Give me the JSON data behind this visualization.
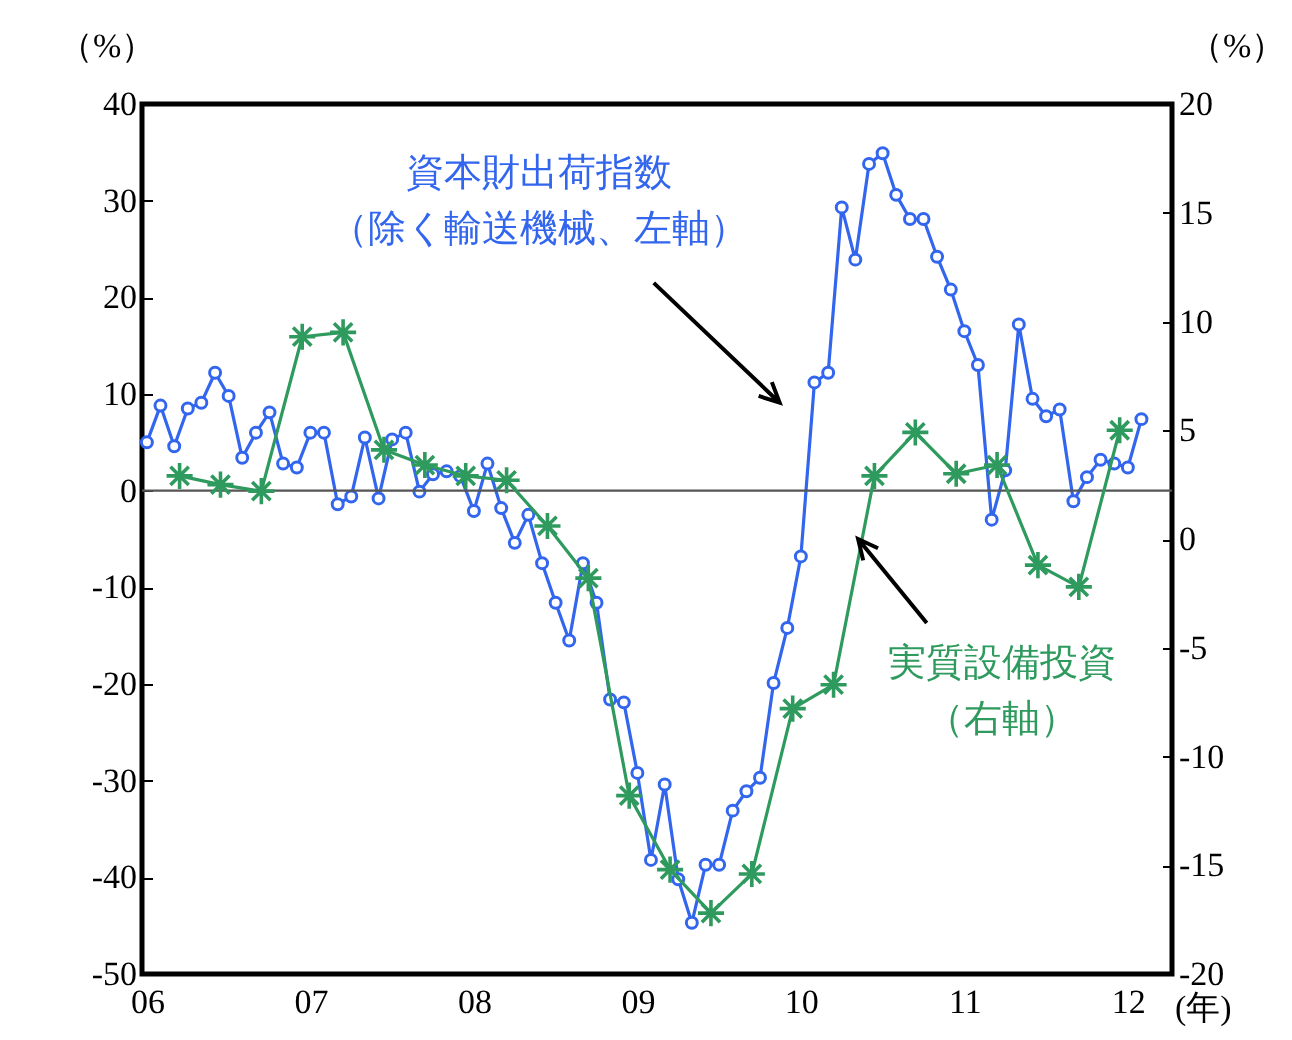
{
  "chart_data": {
    "type": "line",
    "xlabel": "(年)",
    "ylabel": "（%）",
    "y2label": "（%）",
    "xlim": [
      2005.97,
      2012.27
    ],
    "xticks": [
      {
        "value": 2006,
        "label": "06"
      },
      {
        "value": 2007,
        "label": "07"
      },
      {
        "value": 2008,
        "label": "08"
      },
      {
        "value": 2009,
        "label": "09"
      },
      {
        "value": 2010,
        "label": "10"
      },
      {
        "value": 2011,
        "label": "11"
      },
      {
        "value": 2012,
        "label": "12"
      }
    ],
    "ylim": [
      -50,
      40
    ],
    "yticks": [
      -50,
      -40,
      -30,
      -20,
      -10,
      0,
      10,
      20,
      30,
      40
    ],
    "y2lim": [
      -20,
      20
    ],
    "y2ticks": [
      -20,
      -15,
      -10,
      -5,
      0,
      5,
      10,
      15,
      20
    ],
    "ref_lines": [
      {
        "axis": "y",
        "value": 0,
        "color": "#555555"
      }
    ],
    "series": [
      {
        "name": "資本財出荷指数（除く輸送機械、左軸）",
        "color": "#3366ee",
        "marker": "circle",
        "x": [
          2006,
          2006.083,
          2006.167,
          2006.25,
          2006.333,
          2006.417,
          2006.5,
          2006.583,
          2006.667,
          2006.75,
          2006.833,
          2006.917,
          2007,
          2007.083,
          2007.167,
          2007.25,
          2007.333,
          2007.417,
          2007.5,
          2007.583,
          2007.667,
          2007.75,
          2007.833,
          2007.917,
          2008,
          2008.083,
          2008.167,
          2008.25,
          2008.333,
          2008.417,
          2008.5,
          2008.583,
          2008.667,
          2008.75,
          2008.833,
          2008.917,
          2009,
          2009.083,
          2009.167,
          2009.25,
          2009.333,
          2009.417,
          2009.5,
          2009.583,
          2009.667,
          2009.75,
          2009.833,
          2009.917,
          2010,
          2010.083,
          2010.167,
          2010.25,
          2010.333,
          2010.417,
          2010.5,
          2010.583,
          2010.667,
          2010.75,
          2010.833,
          2010.917,
          2011,
          2011.083,
          2011.167,
          2011.25,
          2011.333,
          2011.417,
          2011.5,
          2011.583,
          2011.667,
          2011.75,
          2011.833,
          2011.917,
          2012,
          2012.083
        ],
        "values": [
          5.0,
          8.8,
          4.6,
          8.5,
          9.1,
          12.2,
          9.8,
          3.4,
          6.0,
          8.1,
          2.8,
          2.4,
          6.0,
          6.0,
          -1.4,
          -0.6,
          5.5,
          -0.8,
          5.3,
          6.0,
          -0.1,
          1.7,
          2.0,
          1.5,
          -2.1,
          2.8,
          -1.8,
          -5.4,
          -2.5,
          -7.5,
          -11.6,
          -15.5,
          -7.5,
          -11.6,
          -21.6,
          -21.9,
          -29.2,
          -38.2,
          -30.4,
          -40.2,
          -44.7,
          -38.7,
          -38.7,
          -33.1,
          -31.1,
          -29.7,
          -19.9,
          -14.2,
          -6.8,
          11.2,
          12.2,
          29.3,
          23.9,
          33.8,
          34.9,
          30.6,
          28.1,
          28.1,
          24.2,
          20.8,
          16.5,
          13.0,
          -3.0,
          2.1,
          17.2,
          9.5,
          7.7,
          8.4,
          -1.1,
          1.4,
          3.2,
          2.8,
          2.4,
          7.4
        ]
      },
      {
        "name": "実質設備投資（右軸）",
        "color": "#2e9a5e",
        "marker": "cross",
        "axis": "y2",
        "x": [
          2006.2,
          2006.45,
          2006.7,
          2006.95,
          2007.2,
          2007.45,
          2007.7,
          2007.95,
          2008.2,
          2008.45,
          2008.7,
          2008.95,
          2009.2,
          2009.45,
          2009.7,
          2009.95,
          2010.2,
          2010.45,
          2010.7,
          2010.95,
          2011.2,
          2011.45,
          2011.7,
          2011.95
        ],
        "values": [
          2.9,
          2.5,
          2.2,
          9.3,
          9.5,
          4.1,
          3.4,
          2.9,
          2.7,
          0.6,
          -1.8,
          -11.8,
          -15.2,
          -17.2,
          -15.4,
          -7.8,
          -6.7,
          2.9,
          4.9,
          3.0,
          3.4,
          -1.2,
          -2.2,
          5.0
        ]
      }
    ]
  }
}
